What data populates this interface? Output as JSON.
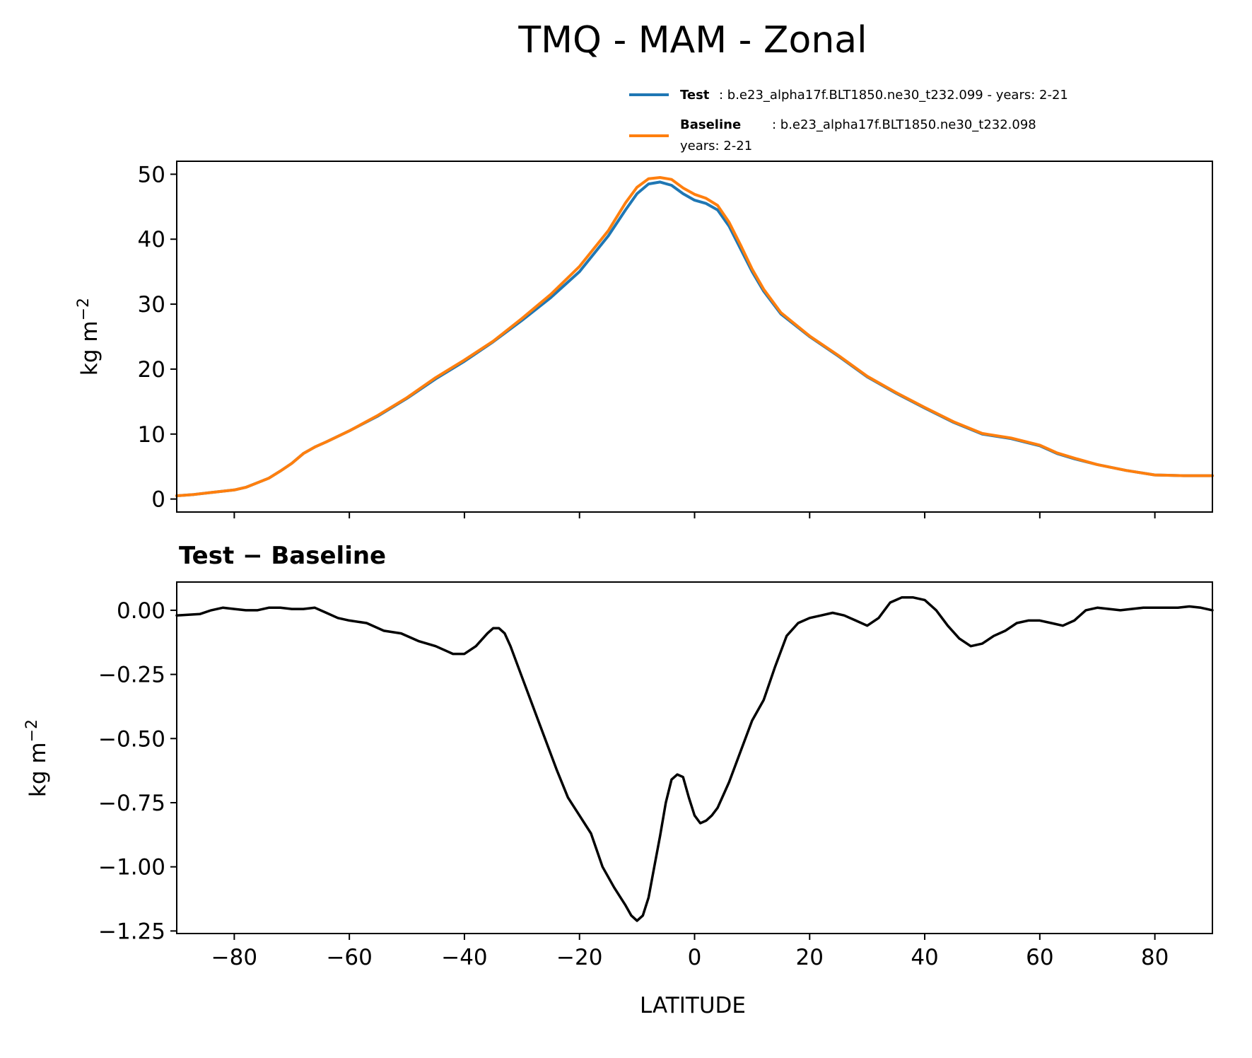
{
  "title": "TMQ - MAM - Zonal",
  "legend": {
    "test": {
      "name": "Test",
      "text": ": b.e23_alpha17f.BLT1850.ne30_t232.099 - years: 2-21",
      "color": "#1f77b4"
    },
    "baseline": {
      "name": "Baseline",
      "text": ": b.e23_alpha17f.BLT1850.ne30_t232.098",
      "text2": "years: 2-21",
      "color": "#ff7f0e"
    }
  },
  "chart_data": [
    {
      "type": "line",
      "title": "TMQ - MAM - Zonal",
      "xlabel": "",
      "ylabel": "kg m",
      "ylabel_sup": "−2",
      "xlim": [
        -90,
        90
      ],
      "ylim": [
        -2,
        52
      ],
      "xticks": [
        -80,
        -60,
        -40,
        -20,
        0,
        20,
        40,
        60,
        80
      ],
      "yticks": [
        0,
        10,
        20,
        30,
        40,
        50
      ],
      "ytick_labels": [
        "0",
        "10",
        "20",
        "30",
        "40",
        "50"
      ],
      "x": [
        -90,
        -87,
        -84,
        -80,
        -78,
        -76,
        -74,
        -72,
        -70,
        -68,
        -66,
        -64,
        -60,
        -55,
        -50,
        -45,
        -40,
        -35,
        -30,
        -25,
        -20,
        -15,
        -12,
        -10,
        -8,
        -6,
        -4,
        -2,
        0,
        2,
        4,
        6,
        8,
        10,
        12,
        15,
        20,
        25,
        30,
        35,
        40,
        45,
        50,
        55,
        60,
        63,
        66,
        70,
        75,
        80,
        85,
        90
      ],
      "series": [
        {
          "name": "Test",
          "color": "#1f77b4",
          "values": [
            0.5,
            0.7,
            1.0,
            1.4,
            1.8,
            2.5,
            3.2,
            4.3,
            5.5,
            7.0,
            8.0,
            8.8,
            10.5,
            12.8,
            15.5,
            18.5,
            21.2,
            24.2,
            27.5,
            31.0,
            35.0,
            40.5,
            44.5,
            47.0,
            48.5,
            48.8,
            48.3,
            47.0,
            46.0,
            45.5,
            44.5,
            42.0,
            38.5,
            35.0,
            32.0,
            28.5,
            25.0,
            22.0,
            18.8,
            16.3,
            14.0,
            11.8,
            10.0,
            9.3,
            8.2,
            7.0,
            6.2,
            5.3,
            4.4,
            3.7,
            3.6,
            3.6
          ]
        },
        {
          "name": "Baseline",
          "color": "#ff7f0e",
          "values": [
            0.5,
            0.7,
            1.0,
            1.4,
            1.8,
            2.5,
            3.2,
            4.3,
            5.5,
            7.0,
            8.0,
            8.8,
            10.5,
            12.9,
            15.6,
            18.7,
            21.4,
            24.3,
            27.8,
            31.5,
            35.8,
            41.3,
            45.6,
            48.0,
            49.3,
            49.5,
            49.2,
            47.9,
            46.9,
            46.3,
            45.2,
            42.6,
            39.1,
            35.4,
            32.3,
            28.7,
            25.1,
            22.1,
            18.9,
            16.4,
            14.1,
            11.9,
            10.1,
            9.4,
            8.3,
            7.1,
            6.3,
            5.3,
            4.4,
            3.7,
            3.6,
            3.6
          ]
        }
      ]
    },
    {
      "type": "line",
      "title": "Test − Baseline",
      "xlabel": "LATITUDE",
      "ylabel": "kg m",
      "ylabel_sup": "−2",
      "xlim": [
        -90,
        90
      ],
      "ylim": [
        -1.26,
        0.11
      ],
      "xticks": [
        -80,
        -60,
        -40,
        -20,
        0,
        20,
        40,
        60,
        80
      ],
      "xtick_labels": [
        "−80",
        "−60",
        "−40",
        "−20",
        "0",
        "20",
        "40",
        "60",
        "80"
      ],
      "yticks": [
        0.0,
        -0.25,
        -0.5,
        -0.75,
        -1.0,
        -1.25
      ],
      "ytick_labels": [
        "0.00",
        "−0.25",
        "−0.50",
        "−0.75",
        "−1.00",
        "−1.25"
      ],
      "series": [
        {
          "name": "Test − Baseline",
          "color": "#000000",
          "x": [
            -90,
            -86,
            -84,
            -82,
            -80,
            -78,
            -76,
            -74,
            -72,
            -70,
            -68,
            -66,
            -64,
            -62,
            -60,
            -57,
            -54,
            -51,
            -48,
            -45,
            -42,
            -40,
            -38,
            -36,
            -35,
            -34,
            -33,
            -32,
            -30,
            -28,
            -26,
            -24,
            -22,
            -20,
            -18,
            -16,
            -14,
            -12,
            -11,
            -10,
            -9,
            -8,
            -7,
            -6,
            -5,
            -4,
            -3,
            -2,
            -1,
            0,
            1,
            2,
            3,
            4,
            5,
            6,
            8,
            10,
            12,
            14,
            16,
            18,
            20,
            22,
            24,
            26,
            28,
            30,
            32,
            34,
            36,
            38,
            40,
            42,
            44,
            46,
            48,
            50,
            52,
            54,
            56,
            58,
            60,
            62,
            64,
            66,
            68,
            70,
            74,
            78,
            80,
            84,
            86,
            88,
            90
          ],
          "values": [
            -0.02,
            -0.015,
            0.0,
            0.01,
            0.005,
            0.0,
            0.0,
            0.01,
            0.01,
            0.005,
            0.005,
            0.01,
            -0.01,
            -0.03,
            -0.04,
            -0.05,
            -0.08,
            -0.09,
            -0.12,
            -0.14,
            -0.17,
            -0.17,
            -0.14,
            -0.09,
            -0.07,
            -0.07,
            -0.09,
            -0.14,
            -0.26,
            -0.38,
            -0.5,
            -0.62,
            -0.73,
            -0.8,
            -0.87,
            -1.0,
            -1.08,
            -1.15,
            -1.19,
            -1.21,
            -1.19,
            -1.12,
            -1.0,
            -0.88,
            -0.75,
            -0.66,
            -0.64,
            -0.65,
            -0.73,
            -0.8,
            -0.83,
            -0.82,
            -0.8,
            -0.77,
            -0.72,
            -0.67,
            -0.55,
            -0.43,
            -0.35,
            -0.22,
            -0.1,
            -0.05,
            -0.03,
            -0.02,
            -0.01,
            -0.02,
            -0.04,
            -0.06,
            -0.03,
            0.03,
            0.05,
            0.05,
            0.04,
            0.0,
            -0.06,
            -0.11,
            -0.14,
            -0.13,
            -0.1,
            -0.08,
            -0.05,
            -0.04,
            -0.04,
            -0.05,
            -0.06,
            -0.04,
            0.0,
            0.01,
            0.0,
            0.01,
            0.01,
            0.01,
            0.015,
            0.01,
            0.0
          ]
        }
      ]
    }
  ]
}
